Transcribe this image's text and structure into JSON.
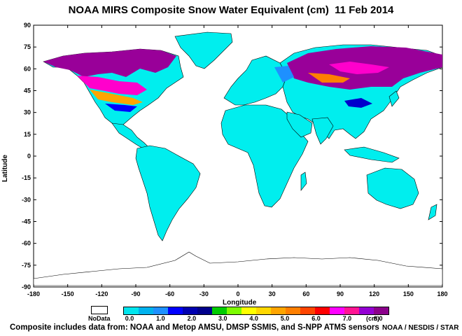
{
  "title": "NOAA MIRS Composite Snow Water Equivalent (cm)  11 Feb 2014",
  "axes": {
    "x_label": "Longitude",
    "y_label": "Latitude",
    "x_ticks": [
      "-180",
      "-150",
      "-120",
      "-90",
      "-60",
      "-30",
      "0",
      "30",
      "60",
      "90",
      "120",
      "150",
      "180"
    ],
    "y_ticks": [
      "90",
      "75",
      "60",
      "45",
      "30",
      "15",
      "0",
      "-15",
      "-30",
      "-45",
      "-60",
      "-75",
      "-90"
    ],
    "x_range": [
      -180,
      180
    ],
    "y_range": [
      -90,
      90
    ]
  },
  "legend": {
    "nodata_label": "NoData",
    "unit": "(cm)",
    "ticks": [
      "0.0",
      "1.0",
      "2.0",
      "3.0",
      "4.0",
      "5.0",
      "6.0",
      "7.0",
      "8.0"
    ],
    "colors": [
      "#00e5ee",
      "#00b2ee",
      "#1e90ff",
      "#0000ff",
      "#0000b0",
      "#00008b",
      "#00cc00",
      "#7cfc00",
      "#ffff00",
      "#ffd700",
      "#ffa500",
      "#ff7f00",
      "#ff4500",
      "#ff0000",
      "#ff00ff",
      "#ff1493",
      "#9400d3",
      "#8b008b"
    ]
  },
  "colors": {
    "land_no_snow": "#00eeee",
    "snow_heavy": "#990099",
    "snow_mid": "#ff00cc"
  },
  "footer": {
    "left": "Composite includes data from: NOAA and Metop AMSU, DMSP SSMIS, and S-NPP ATMS sensors",
    "right": "NOAA / NESDIS / STAR"
  }
}
